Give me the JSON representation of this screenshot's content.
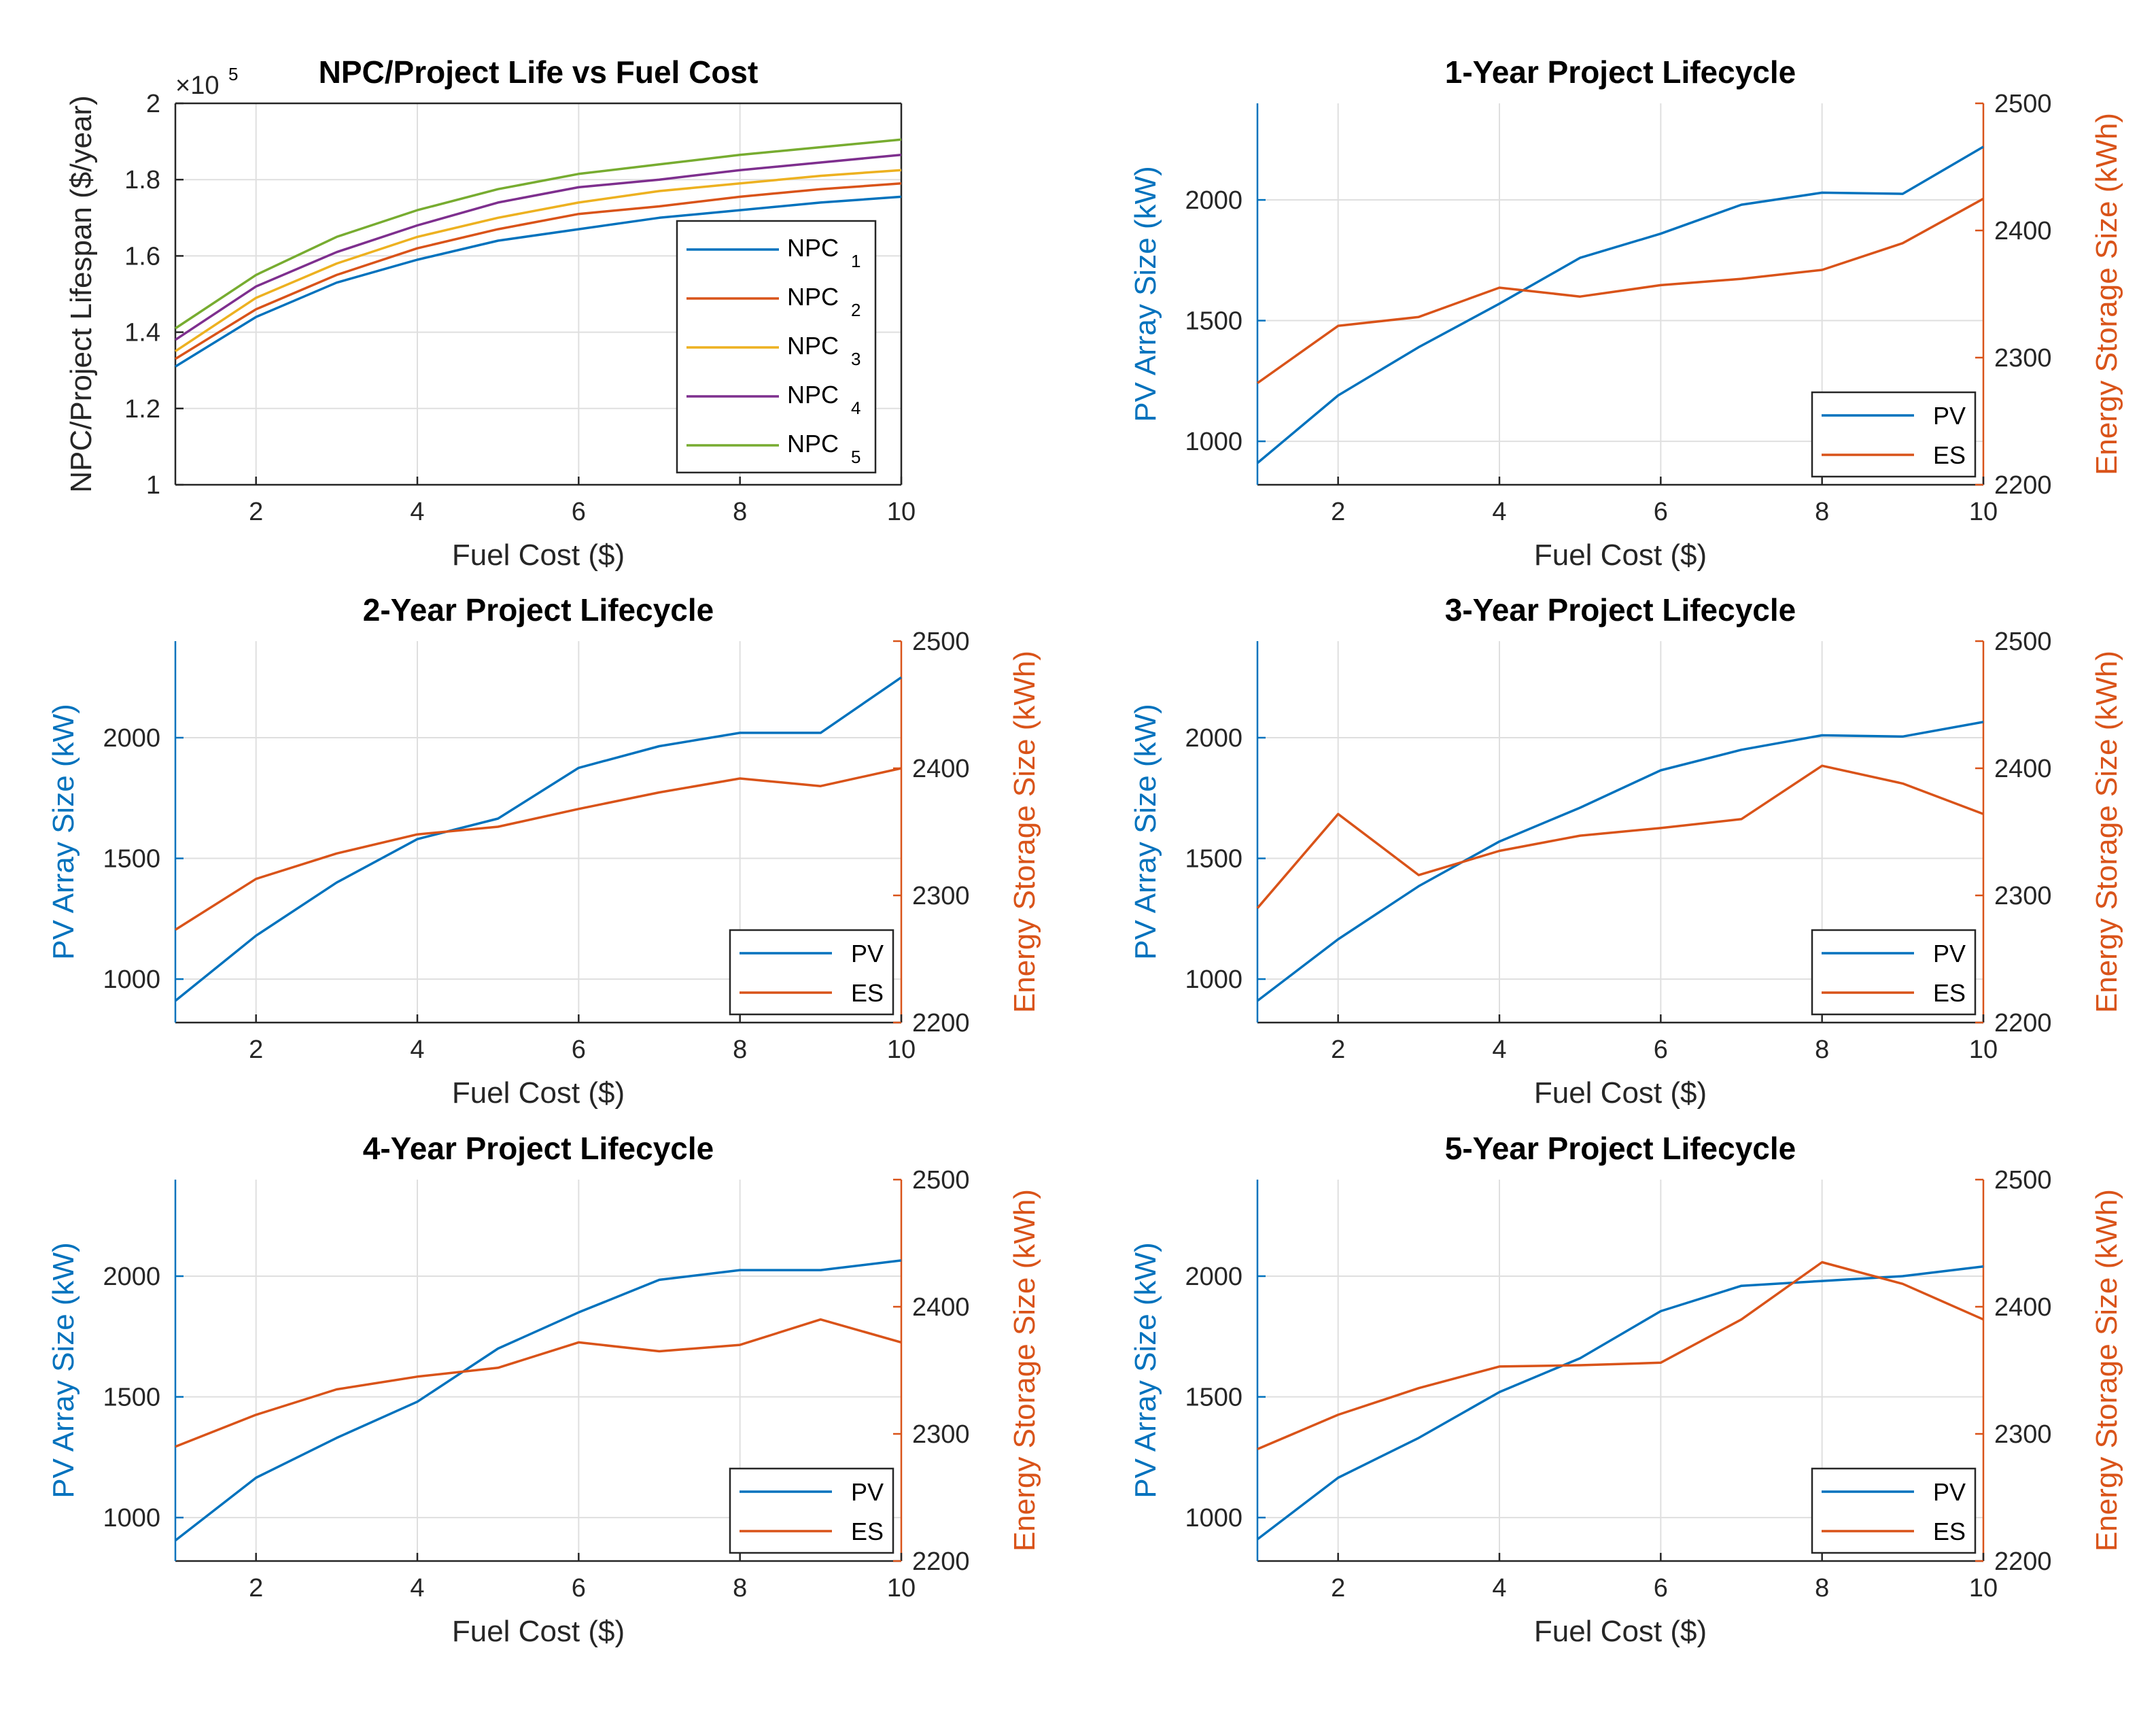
{
  "figure": {
    "colors": {
      "pv": "#0072BD",
      "es": "#D95319",
      "npc": [
        "#0072BD",
        "#D95319",
        "#EDB120",
        "#7E2F8E",
        "#77AC30"
      ],
      "grid": "#DFDFDF",
      "axis": "#262626"
    }
  },
  "chart_data": [
    {
      "type": "line",
      "title": "NPC/Project Life vs Fuel Cost",
      "xlabel": "Fuel Cost ($)",
      "ylabel": "NPC/Project Lifespan ($/year)",
      "exponent_label": "×10",
      "exponent_power": "5",
      "xlim": [
        1,
        10
      ],
      "ylim": [
        1,
        2
      ],
      "x_ticks": [
        2,
        4,
        6,
        8,
        10
      ],
      "x_tick_labels": [
        "2",
        "4",
        "6",
        "8",
        "10"
      ],
      "y_ticks": [
        1,
        1.2,
        1.4,
        1.6,
        1.8,
        2
      ],
      "y_tick_labels": [
        "1",
        "1.2",
        "1.4",
        "1.6",
        "1.8",
        "2"
      ],
      "legend_position": "bottom-right",
      "x": [
        1,
        2,
        3,
        4,
        5,
        6,
        7,
        8,
        9,
        10
      ],
      "series": [
        {
          "name": "NPC",
          "sub": "1",
          "values": [
            1.31,
            1.44,
            1.53,
            1.59,
            1.64,
            1.67,
            1.7,
            1.72,
            1.74,
            1.755
          ]
        },
        {
          "name": "NPC",
          "sub": "2",
          "values": [
            1.33,
            1.46,
            1.55,
            1.62,
            1.67,
            1.71,
            1.73,
            1.755,
            1.775,
            1.79
          ]
        },
        {
          "name": "NPC",
          "sub": "3",
          "values": [
            1.35,
            1.49,
            1.58,
            1.65,
            1.7,
            1.74,
            1.77,
            1.79,
            1.81,
            1.825
          ]
        },
        {
          "name": "NPC",
          "sub": "4",
          "values": [
            1.38,
            1.52,
            1.61,
            1.68,
            1.74,
            1.78,
            1.8,
            1.825,
            1.845,
            1.865
          ]
        },
        {
          "name": "NPC",
          "sub": "5",
          "values": [
            1.41,
            1.55,
            1.65,
            1.72,
            1.775,
            1.815,
            1.84,
            1.865,
            1.885,
            1.905
          ]
        }
      ]
    },
    {
      "type": "line",
      "title": "1-Year Project Lifecycle",
      "xlabel": "Fuel Cost ($)",
      "ylabel_left": "PV Array Size (kW)",
      "ylabel_right": "Energy Storage Size (kWh)",
      "xlim": [
        1,
        10
      ],
      "ylim_left": [
        820,
        2400
      ],
      "ylim_right": [
        2200,
        2500
      ],
      "x_ticks": [
        2,
        4,
        6,
        8,
        10
      ],
      "x_tick_labels": [
        "2",
        "4",
        "6",
        "8",
        "10"
      ],
      "y_ticks_left": [
        1000,
        1500,
        2000
      ],
      "y_tick_labels_left": [
        "1000",
        "1500",
        "2000"
      ],
      "y_ticks_right": [
        2200,
        2300,
        2400,
        2500
      ],
      "y_tick_labels_right": [
        "2200",
        "2300",
        "2400",
        "2500"
      ],
      "legend_position": "bottom-right",
      "x": [
        1,
        2,
        3,
        4,
        5,
        6,
        7,
        8,
        9,
        10
      ],
      "series": [
        {
          "name": "PV",
          "axis": "left",
          "values": [
            910,
            1190,
            1390,
            1570,
            1760,
            1860,
            1980,
            2030,
            2025,
            2220
          ]
        },
        {
          "name": "ES",
          "axis": "right",
          "values": [
            2280,
            2325,
            2332,
            2355,
            2348,
            2357,
            2362,
            2369,
            2390,
            2425
          ]
        }
      ]
    },
    {
      "type": "line",
      "title": "2-Year Project Lifecycle",
      "xlabel": "Fuel Cost ($)",
      "ylabel_left": "PV Array Size (kW)",
      "ylabel_right": "Energy Storage Size (kWh)",
      "xlim": [
        1,
        10
      ],
      "ylim_left": [
        820,
        2400
      ],
      "ylim_right": [
        2200,
        2500
      ],
      "x_ticks": [
        2,
        4,
        6,
        8,
        10
      ],
      "x_tick_labels": [
        "2",
        "4",
        "6",
        "8",
        "10"
      ],
      "y_ticks_left": [
        1000,
        1500,
        2000
      ],
      "y_tick_labels_left": [
        "1000",
        "1500",
        "2000"
      ],
      "y_ticks_right": [
        2200,
        2300,
        2400,
        2500
      ],
      "y_tick_labels_right": [
        "2200",
        "2300",
        "2400",
        "2500"
      ],
      "legend_position": "bottom-right",
      "x": [
        1,
        2,
        3,
        4,
        5,
        6,
        7,
        8,
        9,
        10
      ],
      "series": [
        {
          "name": "PV",
          "axis": "left",
          "values": [
            910,
            1180,
            1400,
            1580,
            1665,
            1875,
            1965,
            2020,
            2020,
            2250
          ]
        },
        {
          "name": "ES",
          "axis": "right",
          "values": [
            2273,
            2313,
            2333,
            2348,
            2354,
            2368,
            2381,
            2392,
            2386,
            2400
          ]
        }
      ]
    },
    {
      "type": "line",
      "title": "3-Year Project Lifecycle",
      "xlabel": "Fuel Cost ($)",
      "ylabel_left": "PV Array Size (kW)",
      "ylabel_right": "Energy Storage Size (kWh)",
      "xlim": [
        1,
        10
      ],
      "ylim_left": [
        820,
        2400
      ],
      "ylim_right": [
        2200,
        2500
      ],
      "x_ticks": [
        2,
        4,
        6,
        8,
        10
      ],
      "x_tick_labels": [
        "2",
        "4",
        "6",
        "8",
        "10"
      ],
      "y_ticks_left": [
        1000,
        1500,
        2000
      ],
      "y_tick_labels_left": [
        "1000",
        "1500",
        "2000"
      ],
      "y_ticks_right": [
        2200,
        2300,
        2400,
        2500
      ],
      "y_tick_labels_right": [
        "2200",
        "2300",
        "2400",
        "2500"
      ],
      "legend_position": "bottom-right",
      "x": [
        1,
        2,
        3,
        4,
        5,
        6,
        7,
        8,
        9,
        10
      ],
      "series": [
        {
          "name": "PV",
          "axis": "left",
          "values": [
            910,
            1165,
            1385,
            1570,
            1710,
            1865,
            1950,
            2010,
            2005,
            2065
          ]
        },
        {
          "name": "ES",
          "axis": "right",
          "values": [
            2290,
            2364,
            2316,
            2335,
            2347,
            2353,
            2360,
            2402,
            2388,
            2364
          ]
        }
      ]
    },
    {
      "type": "line",
      "title": "4-Year Project Lifecycle",
      "xlabel": "Fuel Cost ($)",
      "ylabel_left": "PV Array Size (kW)",
      "ylabel_right": "Energy Storage Size (kWh)",
      "xlim": [
        1,
        10
      ],
      "ylim_left": [
        820,
        2400
      ],
      "ylim_right": [
        2200,
        2500
      ],
      "x_ticks": [
        2,
        4,
        6,
        8,
        10
      ],
      "x_tick_labels": [
        "2",
        "4",
        "6",
        "8",
        "10"
      ],
      "y_ticks_left": [
        1000,
        1500,
        2000
      ],
      "y_tick_labels_left": [
        "1000",
        "1500",
        "2000"
      ],
      "y_ticks_right": [
        2200,
        2300,
        2400,
        2500
      ],
      "y_tick_labels_right": [
        "2200",
        "2300",
        "2400",
        "2500"
      ],
      "legend_position": "bottom-right",
      "x": [
        1,
        2,
        3,
        4,
        5,
        6,
        7,
        8,
        9,
        10
      ],
      "series": [
        {
          "name": "PV",
          "axis": "left",
          "values": [
            905,
            1165,
            1330,
            1480,
            1700,
            1850,
            1985,
            2025,
            2025,
            2065
          ]
        },
        {
          "name": "ES",
          "axis": "right",
          "values": [
            2290,
            2315,
            2335,
            2345,
            2352,
            2372,
            2365,
            2370,
            2390,
            2372
          ]
        }
      ]
    },
    {
      "type": "line",
      "title": "5-Year Project Lifecycle",
      "xlabel": "Fuel Cost ($)",
      "ylabel_left": "PV Array Size (kW)",
      "ylabel_right": "Energy Storage Size (kWh)",
      "xlim": [
        1,
        10
      ],
      "ylim_left": [
        820,
        2400
      ],
      "ylim_right": [
        2200,
        2500
      ],
      "x_ticks": [
        2,
        4,
        6,
        8,
        10
      ],
      "x_tick_labels": [
        "2",
        "4",
        "6",
        "8",
        "10"
      ],
      "y_ticks_left": [
        1000,
        1500,
        2000
      ],
      "y_tick_labels_left": [
        "1000",
        "1500",
        "2000"
      ],
      "y_ticks_right": [
        2200,
        2300,
        2400,
        2500
      ],
      "y_tick_labels_right": [
        "2200",
        "2300",
        "2400",
        "2500"
      ],
      "legend_position": "bottom-right",
      "x": [
        1,
        2,
        3,
        4,
        5,
        6,
        7,
        8,
        9,
        10
      ],
      "series": [
        {
          "name": "PV",
          "axis": "left",
          "values": [
            910,
            1165,
            1330,
            1520,
            1660,
            1855,
            1960,
            1980,
            2000,
            2040
          ]
        },
        {
          "name": "ES",
          "axis": "right",
          "values": [
            2288,
            2315,
            2336,
            2353,
            2354,
            2356,
            2390,
            2435,
            2418,
            2390
          ]
        }
      ]
    }
  ]
}
